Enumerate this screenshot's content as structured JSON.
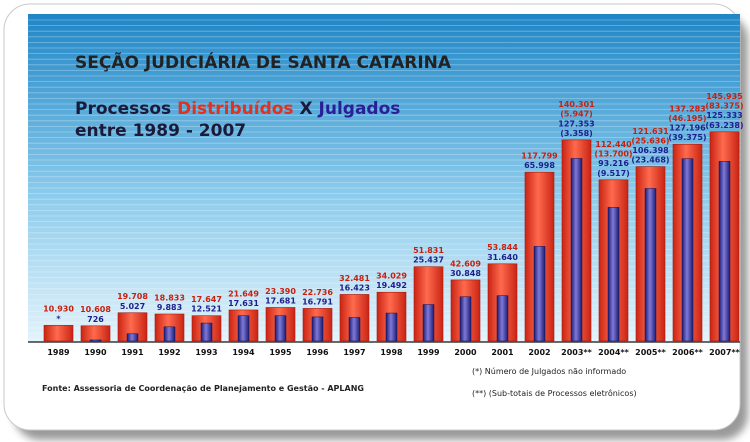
{
  "title": "SEÇÃO JUDICIÁRIA DE SANTA CATARINA",
  "subtitle_line1": {
    "prefix": "Processos ",
    "distributed": "Distribuídos",
    "middle": " X ",
    "judged": "Julgados"
  },
  "subtitle_line2": "entre 1989 - 2007",
  "source": "Fonte: Assessoria de Coordenação de Planejamento e Gestão - APLANG",
  "footnote1": "(*) Número de Julgados não informado",
  "footnote2": "(**) (Sub-totais de Processos eletrônicos)",
  "colors": {
    "distributed": "#e0321f",
    "judged": "#1f1f8c",
    "background_top": "#1f86c6",
    "background_bottom": "#dff1fb"
  },
  "chart_data": {
    "type": "bar",
    "categories": [
      "1989",
      "1990",
      "1991",
      "1992",
      "1993",
      "1994",
      "1995",
      "1996",
      "1997",
      "1998",
      "1999",
      "2000",
      "2001",
      "2002",
      "2003**",
      "2004**",
      "2005**",
      "2006**",
      "2007**"
    ],
    "series": [
      {
        "name": "Distribuídos",
        "values": [
          10930,
          10608,
          19708,
          18833,
          17647,
          21649,
          23390,
          22736,
          32481,
          34029,
          51831,
          42609,
          53844,
          117799,
          140301,
          112440,
          121631,
          137283,
          145935
        ],
        "labels": [
          "10.930",
          "10.608",
          "19.708",
          "18.833",
          "17.647",
          "21.649",
          "23.390",
          "22.736",
          "32.481",
          "34.029",
          "51.831",
          "42.609",
          "53.844",
          "117.799",
          "140.301",
          "112.440",
          "121.631",
          "137.283",
          "145.935"
        ],
        "sub_labels": [
          "",
          "",
          "",
          "",
          "",
          "",
          "",
          "",
          "",
          "",
          "",
          "",
          "",
          "",
          "(5.947)",
          "(13.700)",
          "(25.636)",
          "(46.195)",
          "(83.375)"
        ]
      },
      {
        "name": "Julgados",
        "values": [
          null,
          726,
          5027,
          9883,
          12521,
          17631,
          17681,
          16791,
          16423,
          19492,
          25437,
          30848,
          31640,
          65998,
          127353,
          93216,
          106398,
          127196,
          125333
        ],
        "labels": [
          "*",
          "726",
          "5.027",
          "9.883",
          "12.521",
          "17.631",
          "17.681",
          "16.791",
          "16.423",
          "19.492",
          "25.437",
          "30.848",
          "31.640",
          "65.998",
          "127.353",
          "93.216",
          "106.398",
          "127.196",
          "125.333"
        ],
        "sub_labels": [
          "",
          "",
          "",
          "",
          "",
          "",
          "",
          "",
          "",
          "",
          "",
          "",
          "",
          "",
          "(3.358)",
          "(9.517)",
          "(23.468)",
          "(39.375)",
          "(63.238)"
        ]
      }
    ],
    "grid": true,
    "legend": "none"
  }
}
